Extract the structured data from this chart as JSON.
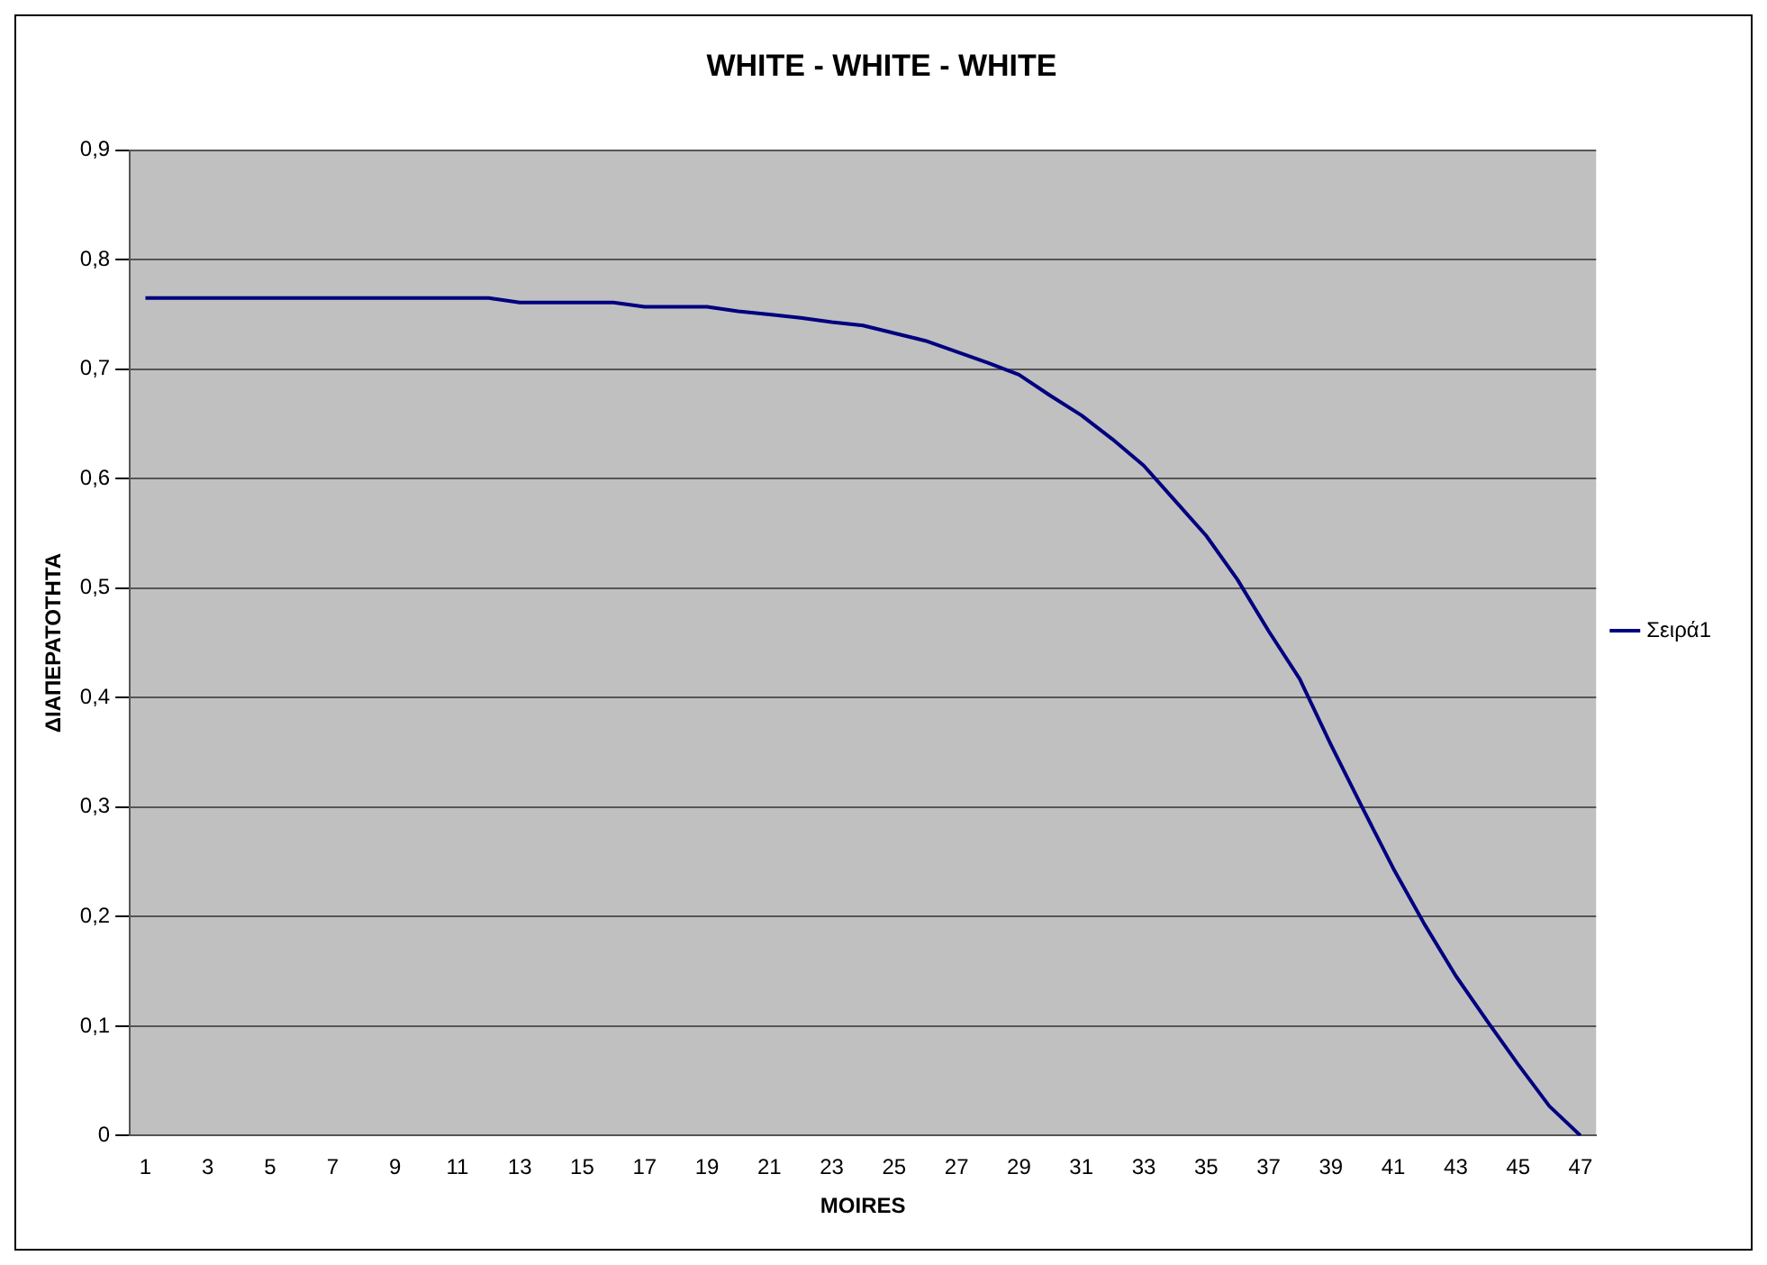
{
  "chart_data": {
    "type": "line",
    "title": "WHITE - WHITE - WHITE",
    "xlabel": "MOIRES",
    "ylabel": "ΔΙΑΠΕΡΑΤΟΤΗΤΑ",
    "x": [
      1,
      2,
      3,
      4,
      5,
      6,
      7,
      8,
      9,
      10,
      11,
      12,
      13,
      14,
      15,
      16,
      17,
      18,
      19,
      20,
      21,
      22,
      23,
      24,
      25,
      26,
      27,
      28,
      29,
      30,
      31,
      32,
      33,
      34,
      35,
      36,
      37,
      38,
      39,
      40,
      41,
      42,
      43,
      44,
      45,
      46,
      47
    ],
    "series": [
      {
        "name": "Σειρά1",
        "color": "#000080",
        "values": [
          0.765,
          0.765,
          0.765,
          0.765,
          0.765,
          0.765,
          0.765,
          0.765,
          0.765,
          0.765,
          0.765,
          0.765,
          0.761,
          0.761,
          0.761,
          0.761,
          0.757,
          0.757,
          0.757,
          0.753,
          0.75,
          0.747,
          0.743,
          0.74,
          0.733,
          0.726,
          0.716,
          0.706,
          0.695,
          0.676,
          0.658,
          0.636,
          0.612,
          0.58,
          0.548,
          0.508,
          0.461,
          0.417,
          0.357,
          0.3,
          0.244,
          0.193,
          0.146,
          0.105,
          0.065,
          0.027,
          0
        ]
      }
    ],
    "xlim": [
      0.5,
      47.5
    ],
    "xticks": [
      1,
      3,
      5,
      7,
      9,
      11,
      13,
      15,
      17,
      19,
      21,
      23,
      25,
      27,
      29,
      31,
      33,
      35,
      37,
      39,
      41,
      43,
      45,
      47
    ],
    "ylim": [
      0,
      0.9
    ],
    "yticks": [
      {
        "value": 0,
        "label": "0"
      },
      {
        "value": 0.1,
        "label": "0,1"
      },
      {
        "value": 0.2,
        "label": "0,2"
      },
      {
        "value": 0.3,
        "label": "0,3"
      },
      {
        "value": 0.4,
        "label": "0,4"
      },
      {
        "value": 0.5,
        "label": "0,5"
      },
      {
        "value": 0.6,
        "label": "0,6"
      },
      {
        "value": 0.7,
        "label": "0,7"
      },
      {
        "value": 0.8,
        "label": "0,8"
      },
      {
        "value": 0.9,
        "label": "0,9"
      }
    ],
    "grid": "y",
    "legend": "right",
    "marker": "none",
    "line_style": "solid"
  }
}
